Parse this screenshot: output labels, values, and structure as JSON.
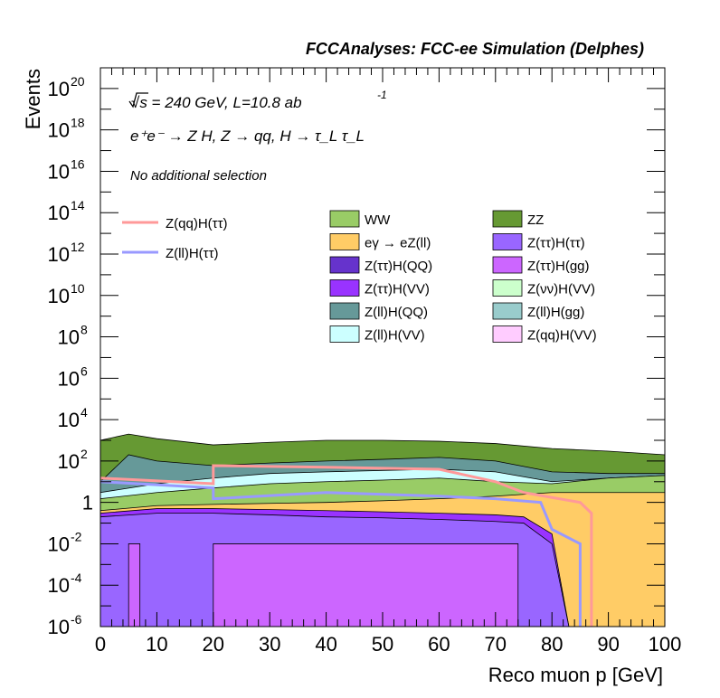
{
  "header": {
    "title": "FCCAnalyses: FCC-ee Simulation (Delphes)"
  },
  "annotations": {
    "energy": "√s = 240 GeV, L=10.8 ab",
    "energy_sup": "-1",
    "process": "e⁺e⁻ → Z H, Z → qq, H → τ_L τ_L",
    "selection": "No additional selection"
  },
  "colors": {
    "WW": "#99cc66",
    "ZZ": "#669933",
    "egamma": "#ffcc66",
    "ZtautauHtautau": "#9966ff",
    "ZtautauHQQ": "#6633cc",
    "ZtautauHgg": "#cc66ff",
    "ZtautauHVV": "#9933ff",
    "ZnunuHVV": "#ccffcc",
    "ZllHQQ": "#669999",
    "ZllHgg": "#99cccc",
    "ZllHVV": "#ccffff",
    "ZqqHVV": "#ffccff",
    "sig_qq": "#ff9999",
    "sig_ll": "#9999ff"
  },
  "chart_data": {
    "type": "area",
    "title": "FCCAnalyses: FCC-ee Simulation (Delphes)",
    "xlabel": "Reco muon p [GeV]",
    "ylabel": "Events",
    "xlim": [
      0,
      100
    ],
    "ylim": [
      1e-06,
      1e+21
    ],
    "yscale": "log",
    "x_ticks": [
      "0",
      "10",
      "20",
      "30",
      "40",
      "50",
      "60",
      "70",
      "80",
      "90",
      "100"
    ],
    "y_ticks": [
      {
        "base": "10",
        "exp": "-6"
      },
      {
        "base": "10",
        "exp": "-4"
      },
      {
        "base": "10",
        "exp": "-2"
      },
      {
        "base": "1",
        "exp": ""
      },
      {
        "base": "10",
        "exp": "2"
      },
      {
        "base": "10",
        "exp": "4"
      },
      {
        "base": "10",
        "exp": "6"
      },
      {
        "base": "10",
        "exp": "8"
      },
      {
        "base": "10",
        "exp": "10"
      },
      {
        "base": "10",
        "exp": "12"
      },
      {
        "base": "10",
        "exp": "14"
      },
      {
        "base": "10",
        "exp": "16"
      },
      {
        "base": "10",
        "exp": "18"
      },
      {
        "base": "10",
        "exp": "20"
      }
    ],
    "legend_signal": [
      {
        "label": "Z(qq)H(ττ)",
        "color": "#ff9999"
      },
      {
        "label": "Z(ll)H(ττ)",
        "color": "#9999ff"
      }
    ],
    "legend_background": [
      {
        "label": "WW",
        "color": "#99cc66"
      },
      {
        "label": "ZZ",
        "color": "#669933"
      },
      {
        "label": "eγ → eZ(ll)",
        "color": "#ffcc66"
      },
      {
        "label": "Z(ττ)H(ττ)",
        "color": "#9966ff"
      },
      {
        "label": "Z(ττ)H(QQ)",
        "color": "#6633cc"
      },
      {
        "label": "Z(ττ)H(gg)",
        "color": "#cc66ff"
      },
      {
        "label": "Z(ττ)H(VV)",
        "color": "#9933ff"
      },
      {
        "label": "Z(νν)H(VV)",
        "color": "#ccffcc"
      },
      {
        "label": "Z(ll)H(QQ)",
        "color": "#669999"
      },
      {
        "label": "Z(ll)H(gg)",
        "color": "#99cccc"
      },
      {
        "label": "Z(ll)H(VV)",
        "color": "#ccffff"
      },
      {
        "label": "Z(qq)H(VV)",
        "color": "#ffccff"
      }
    ],
    "stack_boundaries": [
      {
        "name": "Z(ττ)H(gg)",
        "color": "#cc66ff",
        "points": [
          [
            0,
            1e-06
          ],
          [
            5,
            1e-06
          ],
          [
            5,
            0.01
          ],
          [
            7,
            0.01
          ],
          [
            7,
            1e-06
          ],
          [
            20,
            1e-06
          ],
          [
            20,
            0.01
          ],
          [
            74,
            0.01
          ],
          [
            74,
            1e-06
          ],
          [
            100,
            1e-06
          ]
        ]
      },
      {
        "name": "Z(ττ)H(ττ)",
        "color": "#9966ff",
        "points": [
          [
            0,
            0.2
          ],
          [
            10,
            0.3
          ],
          [
            20,
            0.3
          ],
          [
            30,
            0.25
          ],
          [
            40,
            0.2
          ],
          [
            50,
            0.18
          ],
          [
            60,
            0.15
          ],
          [
            70,
            0.12
          ],
          [
            75,
            0.1
          ],
          [
            80,
            0.01
          ],
          [
            83,
            1e-06
          ],
          [
            100,
            1e-06
          ]
        ]
      },
      {
        "name": "Z(ττ)H(VV)",
        "color": "#9933ff",
        "points": [
          [
            0,
            0.3
          ],
          [
            10,
            0.5
          ],
          [
            20,
            0.5
          ],
          [
            30,
            0.45
          ],
          [
            40,
            0.4
          ],
          [
            50,
            0.35
          ],
          [
            60,
            0.3
          ],
          [
            70,
            0.25
          ],
          [
            75,
            0.2
          ],
          [
            80,
            0.03
          ],
          [
            83,
            1e-06
          ],
          [
            100,
            1e-06
          ]
        ]
      },
      {
        "name": "eγ → eZ(ll)",
        "color": "#ffcc66",
        "points": [
          [
            0,
            0.4
          ],
          [
            10,
            0.7
          ],
          [
            20,
            0.8
          ],
          [
            30,
            0.9
          ],
          [
            40,
            1.0
          ],
          [
            50,
            1.2
          ],
          [
            60,
            1.5
          ],
          [
            70,
            2
          ],
          [
            80,
            3
          ],
          [
            90,
            3
          ],
          [
            100,
            3
          ]
        ]
      },
      {
        "name": "WW",
        "color": "#99cc66",
        "points": [
          [
            0,
            1.5
          ],
          [
            10,
            3
          ],
          [
            20,
            5
          ],
          [
            30,
            8
          ],
          [
            40,
            10
          ],
          [
            50,
            12
          ],
          [
            60,
            15
          ],
          [
            70,
            10
          ],
          [
            80,
            8
          ],
          [
            90,
            15
          ],
          [
            100,
            20
          ]
        ]
      },
      {
        "name": "Z(ll)H(VV)",
        "color": "#ccffff",
        "points": [
          [
            0,
            3
          ],
          [
            10,
            8
          ],
          [
            20,
            15
          ],
          [
            30,
            25
          ],
          [
            40,
            30
          ],
          [
            50,
            35
          ],
          [
            60,
            40
          ],
          [
            70,
            30
          ],
          [
            80,
            10
          ],
          [
            90,
            15
          ],
          [
            100,
            20
          ]
        ]
      },
      {
        "name": "Z(ll)H(QQ)",
        "color": "#669999",
        "points": [
          [
            0,
            10
          ],
          [
            5,
            200
          ],
          [
            10,
            100
          ],
          [
            20,
            60
          ],
          [
            30,
            80
          ],
          [
            40,
            100
          ],
          [
            50,
            120
          ],
          [
            60,
            150
          ],
          [
            70,
            100
          ],
          [
            80,
            30
          ],
          [
            90,
            25
          ],
          [
            100,
            25
          ]
        ]
      },
      {
        "name": "ZZ",
        "color": "#669933",
        "points": [
          [
            0,
            1000
          ],
          [
            5,
            2000
          ],
          [
            10,
            1200
          ],
          [
            20,
            600
          ],
          [
            30,
            800
          ],
          [
            40,
            1000
          ],
          [
            50,
            1000
          ],
          [
            60,
            900
          ],
          [
            70,
            700
          ],
          [
            80,
            400
          ],
          [
            90,
            300
          ],
          [
            100,
            200
          ]
        ]
      }
    ],
    "signal_lines": [
      {
        "name": "Z(qq)H(ττ)",
        "color": "#ff9999",
        "points": [
          [
            0,
            15
          ],
          [
            20,
            8
          ],
          [
            20,
            60
          ],
          [
            40,
            50
          ],
          [
            60,
            40
          ],
          [
            70,
            10
          ],
          [
            75,
            3
          ],
          [
            85,
            1
          ],
          [
            87,
            0.3
          ],
          [
            87,
            1e-06
          ]
        ]
      },
      {
        "name": "Z(ll)H(ττ)",
        "color": "#9999ff",
        "points": [
          [
            0,
            10
          ],
          [
            20,
            5
          ],
          [
            20,
            1.5
          ],
          [
            40,
            3
          ],
          [
            60,
            2
          ],
          [
            70,
            1.5
          ],
          [
            78,
            1
          ],
          [
            80,
            0.05
          ],
          [
            85,
            0.01
          ],
          [
            85,
            1e-06
          ]
        ]
      }
    ]
  }
}
